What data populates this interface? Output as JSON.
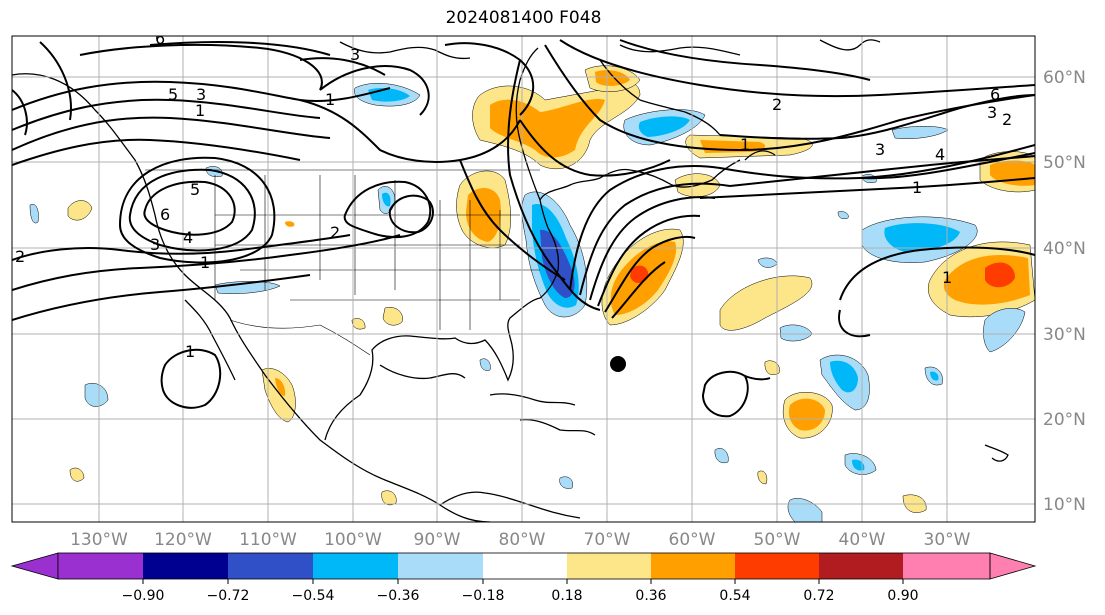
{
  "title": "2024081400 F048",
  "map": {
    "lon_ticks": [
      "130°W",
      "120°W",
      "110°W",
      "100°W",
      "90°W",
      "80°W",
      "70°W",
      "60°W",
      "50°W",
      "40°W",
      "30°W"
    ],
    "lat_ticks": [
      "60°N",
      "50°N",
      "40°N",
      "30°N",
      "20°N",
      "10°N"
    ],
    "contour_labels": [
      "6",
      "5",
      "3",
      "1",
      "2",
      "1",
      "3",
      "4",
      "5",
      "6",
      "2",
      "3",
      "1",
      "1",
      "2",
      "6",
      "3",
      "2",
      "3",
      "4",
      "1",
      "1",
      "1"
    ],
    "colors": {
      "land_outline": "#000000",
      "gridline": "#b0b0b0"
    }
  },
  "colorbar": {
    "labels": [
      "−0.90",
      "−0.72",
      "−0.54",
      "−0.36",
      "−0.18",
      "0.18",
      "0.36",
      "0.54",
      "0.72",
      "0.90"
    ],
    "colors": [
      "#9b30d0",
      "#000090",
      "#3050c8",
      "#00b8f8",
      "#a8dcf8",
      "#ffffff",
      "#fde68a",
      "#ffa000",
      "#ff3c00",
      "#b01c20",
      "#ff80b0"
    ]
  }
}
